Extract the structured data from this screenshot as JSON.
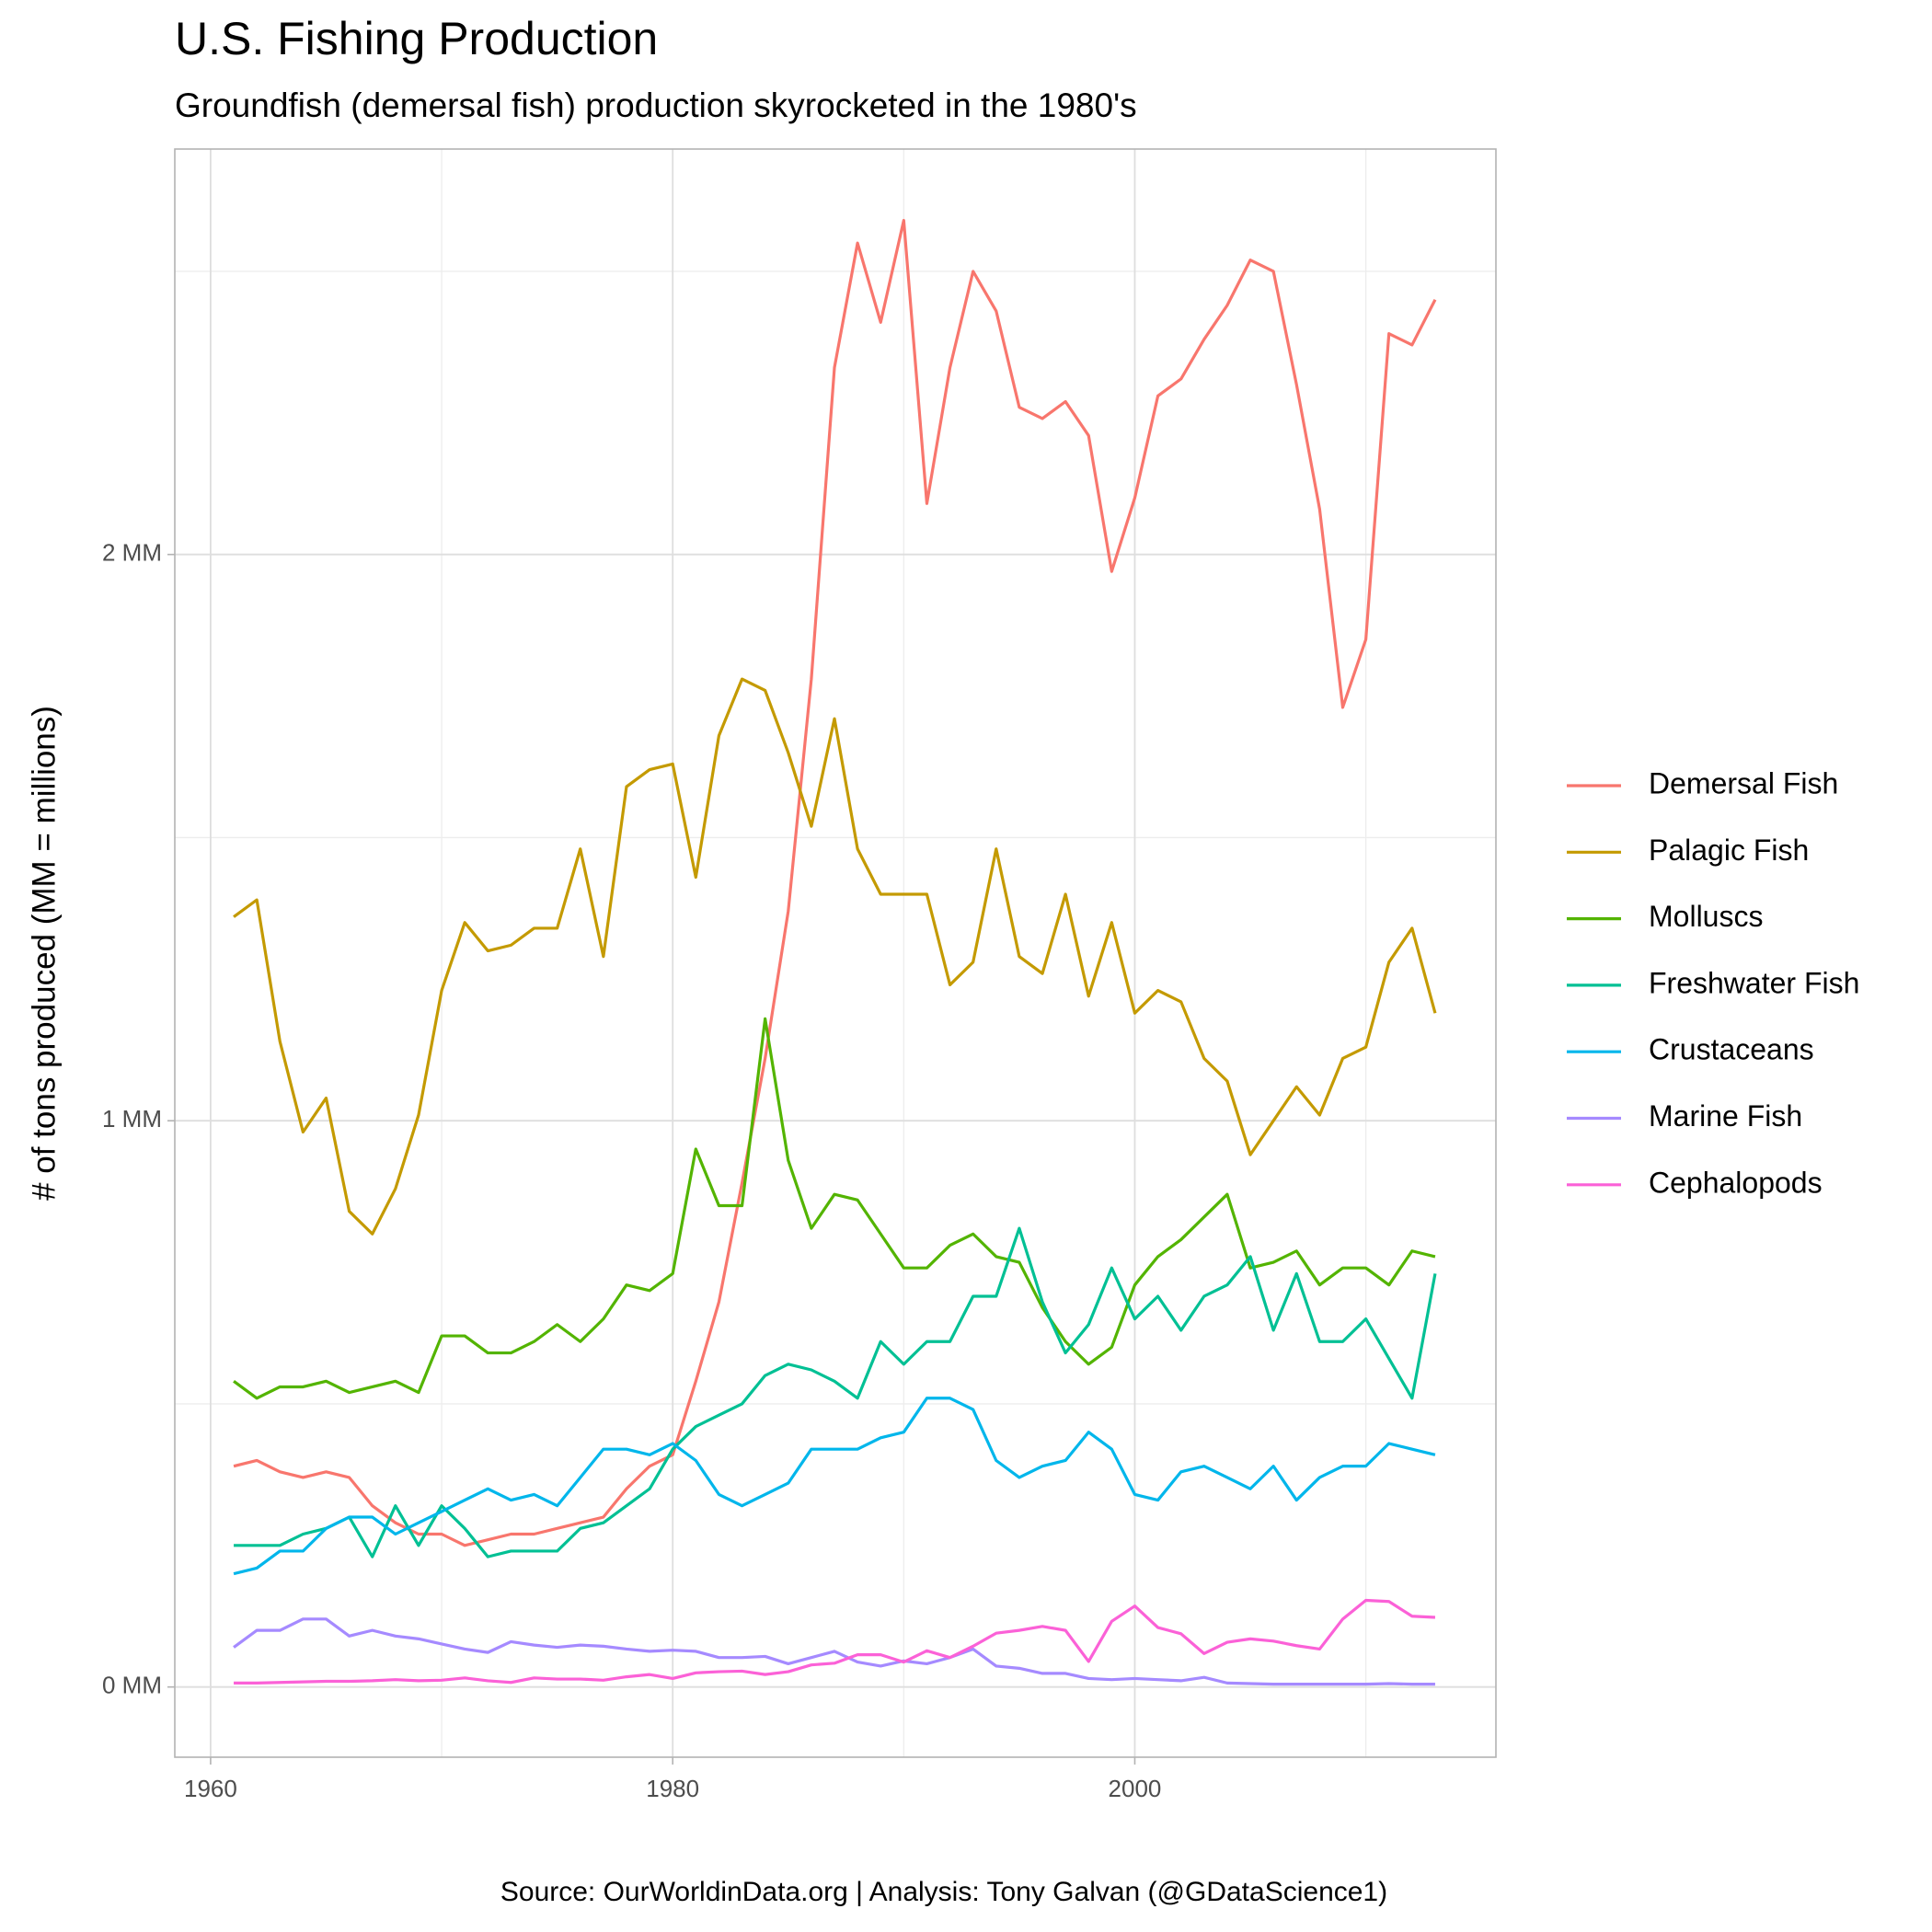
{
  "chart_data": {
    "type": "line",
    "title": "U.S. Fishing Production",
    "subtitle": "Groundfish (demersal fish) production skyrocketed in the 1980's",
    "y_label": "# of tons produced (MM = millions)",
    "caption": "Source: OurWorldinData.org  |  Analysis: Tony Galvan (@GDataScience1)",
    "x": [
      1961,
      1962,
      1963,
      1964,
      1965,
      1966,
      1967,
      1968,
      1969,
      1970,
      1971,
      1972,
      1973,
      1974,
      1975,
      1976,
      1977,
      1978,
      1979,
      1980,
      1981,
      1982,
      1983,
      1984,
      1985,
      1986,
      1987,
      1988,
      1989,
      1990,
      1991,
      1992,
      1993,
      1994,
      1995,
      1996,
      1997,
      1998,
      1999,
      2000,
      2001,
      2002,
      2003,
      2004,
      2005,
      2006,
      2007,
      2008,
      2009,
      2010,
      2011,
      2012,
      2013
    ],
    "series": [
      {
        "name": "Demersal Fish",
        "color": "#F8766D",
        "values": [
          0.39,
          0.4,
          0.38,
          0.37,
          0.38,
          0.37,
          0.32,
          0.29,
          0.27,
          0.27,
          0.25,
          0.26,
          0.27,
          0.27,
          0.28,
          0.29,
          0.3,
          0.35,
          0.39,
          0.41,
          0.54,
          0.68,
          0.89,
          1.11,
          1.37,
          1.78,
          2.33,
          2.55,
          2.41,
          2.59,
          2.09,
          2.33,
          2.5,
          2.43,
          2.26,
          2.24,
          2.27,
          2.21,
          1.97,
          2.1,
          2.28,
          2.31,
          2.38,
          2.44,
          2.52,
          2.5,
          2.3,
          2.08,
          1.73,
          1.85,
          2.39,
          2.37,
          2.45
        ]
      },
      {
        "name": "Palagic Fish",
        "color": "#C49A00",
        "values": [
          1.36,
          1.39,
          1.14,
          0.98,
          1.04,
          0.84,
          0.8,
          0.88,
          1.01,
          1.23,
          1.35,
          1.3,
          1.31,
          1.34,
          1.34,
          1.48,
          1.29,
          1.59,
          1.62,
          1.63,
          1.43,
          1.68,
          1.78,
          1.76,
          1.65,
          1.52,
          1.71,
          1.48,
          1.4,
          1.4,
          1.4,
          1.24,
          1.28,
          1.48,
          1.29,
          1.26,
          1.4,
          1.22,
          1.35,
          1.19,
          1.23,
          1.21,
          1.11,
          1.07,
          0.94,
          1.0,
          1.06,
          1.01,
          1.11,
          1.13,
          1.28,
          1.34,
          1.19
        ]
      },
      {
        "name": "Molluscs",
        "color": "#53B400",
        "values": [
          0.54,
          0.51,
          0.53,
          0.53,
          0.54,
          0.52,
          0.53,
          0.54,
          0.52,
          0.62,
          0.62,
          0.59,
          0.59,
          0.61,
          0.64,
          0.61,
          0.65,
          0.71,
          0.7,
          0.73,
          0.95,
          0.85,
          0.85,
          1.18,
          0.93,
          0.81,
          0.87,
          0.86,
          0.8,
          0.74,
          0.74,
          0.78,
          0.8,
          0.76,
          0.75,
          0.67,
          0.61,
          0.57,
          0.6,
          0.71,
          0.76,
          0.79,
          0.83,
          0.87,
          0.74,
          0.75,
          0.77,
          0.71,
          0.74,
          0.74,
          0.71,
          0.77,
          0.76
        ]
      },
      {
        "name": "Freshwater Fish",
        "color": "#00C094",
        "values": [
          0.25,
          0.25,
          0.25,
          0.27,
          0.28,
          0.3,
          0.23,
          0.32,
          0.25,
          0.32,
          0.28,
          0.23,
          0.24,
          0.24,
          0.24,
          0.28,
          0.29,
          0.32,
          0.35,
          0.42,
          0.46,
          0.48,
          0.5,
          0.55,
          0.57,
          0.56,
          0.54,
          0.51,
          0.61,
          0.57,
          0.61,
          0.61,
          0.69,
          0.69,
          0.81,
          0.68,
          0.59,
          0.64,
          0.74,
          0.65,
          0.69,
          0.63,
          0.69,
          0.71,
          0.76,
          0.63,
          0.73,
          0.61,
          0.61,
          0.65,
          0.58,
          0.51,
          0.73
        ]
      },
      {
        "name": "Crustaceans",
        "color": "#00B6EB",
        "values": [
          0.2,
          0.21,
          0.24,
          0.24,
          0.28,
          0.3,
          0.3,
          0.27,
          0.29,
          0.31,
          0.33,
          0.35,
          0.33,
          0.34,
          0.32,
          0.37,
          0.42,
          0.42,
          0.41,
          0.43,
          0.4,
          0.34,
          0.32,
          0.34,
          0.36,
          0.42,
          0.42,
          0.42,
          0.44,
          0.45,
          0.51,
          0.51,
          0.49,
          0.4,
          0.37,
          0.39,
          0.4,
          0.45,
          0.42,
          0.34,
          0.33,
          0.38,
          0.39,
          0.37,
          0.35,
          0.39,
          0.33,
          0.37,
          0.39,
          0.39,
          0.43,
          0.42,
          0.41
        ]
      },
      {
        "name": "Marine Fish",
        "color": "#A58AFF",
        "values": [
          0.07,
          0.1,
          0.1,
          0.12,
          0.12,
          0.09,
          0.1,
          0.09,
          0.085,
          0.076,
          0.067,
          0.061,
          0.08,
          0.074,
          0.07,
          0.074,
          0.072,
          0.067,
          0.063,
          0.065,
          0.063,
          0.052,
          0.052,
          0.054,
          0.041,
          0.052,
          0.063,
          0.044,
          0.037,
          0.046,
          0.041,
          0.052,
          0.067,
          0.037,
          0.033,
          0.024,
          0.024,
          0.015,
          0.013,
          0.015,
          0.013,
          0.011,
          0.017,
          0.007,
          0.006,
          0.005,
          0.005,
          0.005,
          0.005,
          0.005,
          0.006,
          0.005,
          0.005
        ]
      },
      {
        "name": "Cephalopods",
        "color": "#FB61D7",
        "values": [
          0.007,
          0.007,
          0.008,
          0.009,
          0.01,
          0.01,
          0.011,
          0.013,
          0.011,
          0.012,
          0.016,
          0.011,
          0.008,
          0.016,
          0.014,
          0.014,
          0.012,
          0.018,
          0.022,
          0.015,
          0.025,
          0.027,
          0.028,
          0.022,
          0.027,
          0.039,
          0.042,
          0.057,
          0.057,
          0.044,
          0.064,
          0.052,
          0.072,
          0.095,
          0.1,
          0.107,
          0.1,
          0.045,
          0.116,
          0.143,
          0.105,
          0.094,
          0.059,
          0.079,
          0.085,
          0.081,
          0.073,
          0.067,
          0.12,
          0.153,
          0.151,
          0.125,
          0.123
        ]
      }
    ],
    "xlim": [
      1958.45,
      2015.63
    ],
    "ylim": [
      -0.124,
      2.716
    ],
    "xticks": [
      1960,
      1980,
      2000
    ],
    "yticks": [
      {
        "value": 0,
        "label": "0 MM"
      },
      {
        "value": 1,
        "label": "1 MM"
      },
      {
        "value": 2,
        "label": "2 MM"
      }
    ],
    "x_minor_grid": [
      1970,
      1990,
      2010
    ],
    "y_minor_grid": [
      0.5,
      1.5,
      2.5
    ],
    "grid": true,
    "legend": "right"
  }
}
